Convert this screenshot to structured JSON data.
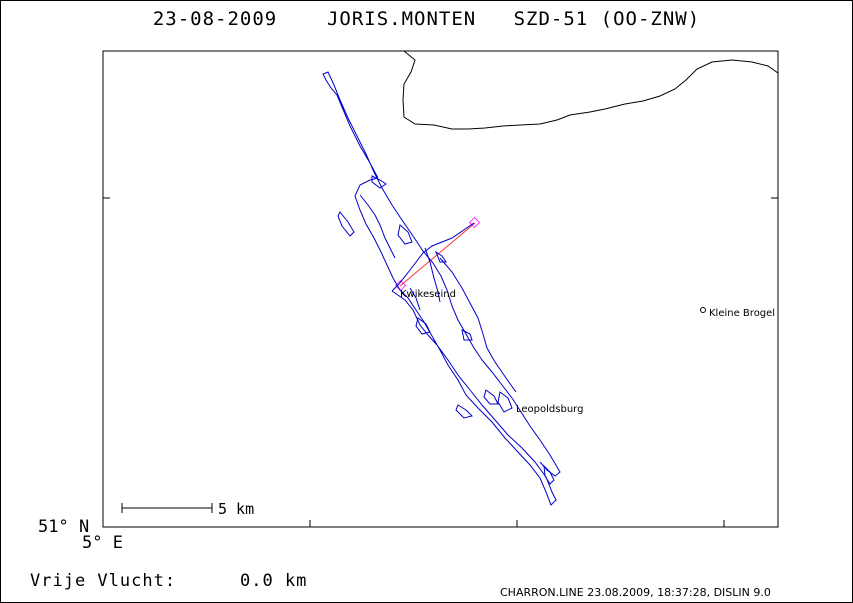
{
  "header": {
    "date": "23-08-2009",
    "pilot": "JORIS.MONTEN",
    "glider": "SZD-51 (OO-ZNW)"
  },
  "map": {
    "lat_label": "51° N",
    "lon_label": "5° E",
    "scale_label": "5 km",
    "track_color": "#0000cc",
    "task_color": "#ff3333",
    "border_color": "#000000"
  },
  "places": [
    {
      "name": "Kleine Brogel",
      "marker": "o"
    },
    {
      "name": "Leopoldsburg"
    },
    {
      "name": "Kwikeseind"
    }
  ],
  "stats": {
    "free_flight_label": "Vrije Vlucht:",
    "free_flight_value": "0.0 km"
  },
  "footer": {
    "text": "CHARRON.LINE 23.08.2009, 18:37:28, DISLIN 9.0"
  }
}
